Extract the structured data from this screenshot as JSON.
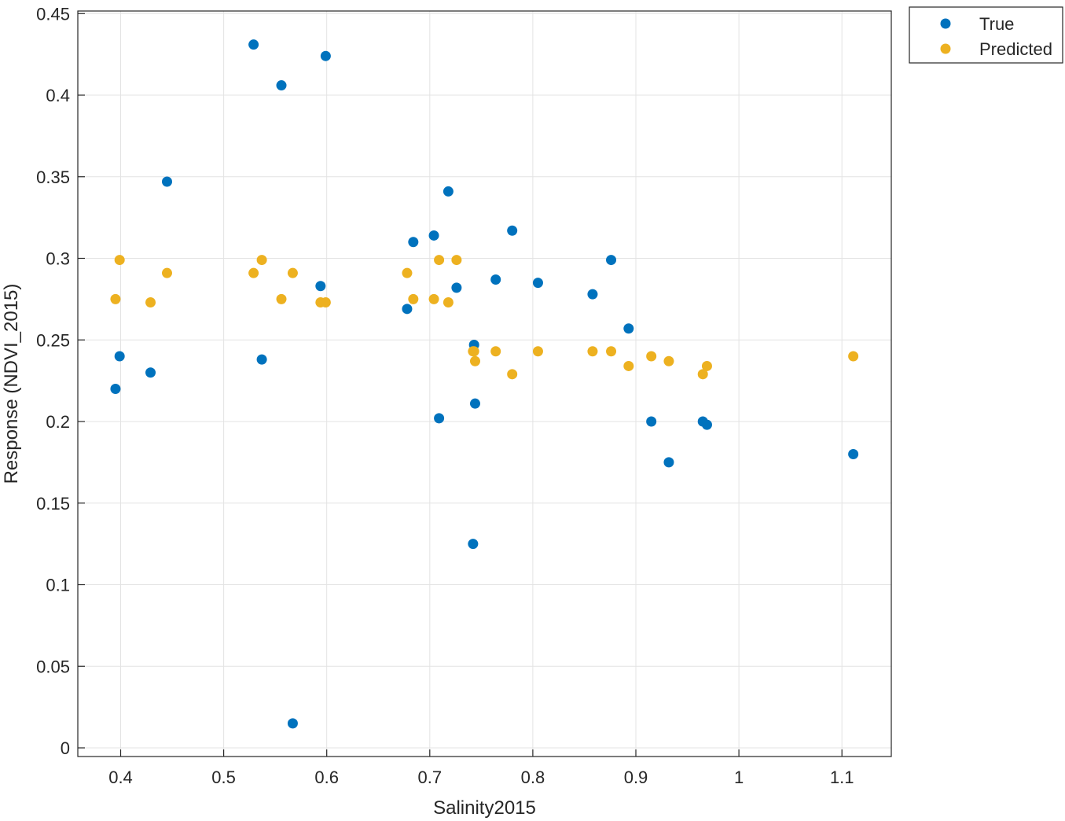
{
  "chart_data": {
    "type": "scatter",
    "title": "",
    "xlabel": "Salinity2015",
    "ylabel": "Response (NDVI_2015)",
    "xlim": [
      0.36,
      1.15
    ],
    "ylim": [
      -0.006,
      0.45
    ],
    "grid": true,
    "legend_position": "top-right, outside plot",
    "x_ticks": [
      0.4,
      0.5,
      0.6,
      0.7,
      0.8,
      0.9,
      1.0,
      1.1
    ],
    "x_tick_labels": [
      "0.4",
      "0.5",
      "0.6",
      "0.7",
      "0.8",
      "0.9",
      "1",
      "1.1"
    ],
    "y_ticks": [
      0,
      0.05,
      0.1,
      0.15,
      0.2,
      0.25,
      0.3,
      0.35,
      0.4,
      0.45
    ],
    "y_tick_labels": [
      "0",
      "0.05",
      "0.1",
      "0.15",
      "0.2",
      "0.25",
      "0.3",
      "0.35",
      "0.4",
      "0.45"
    ],
    "series": [
      {
        "name": "True",
        "color": "#0072BD",
        "points": [
          [
            0.395,
            0.22
          ],
          [
            0.399,
            0.24
          ],
          [
            0.429,
            0.23
          ],
          [
            0.445,
            0.347
          ],
          [
            0.529,
            0.431
          ],
          [
            0.537,
            0.238
          ],
          [
            0.556,
            0.406
          ],
          [
            0.567,
            0.015
          ],
          [
            0.594,
            0.283
          ],
          [
            0.599,
            0.424
          ],
          [
            0.678,
            0.269
          ],
          [
            0.684,
            0.31
          ],
          [
            0.704,
            0.314
          ],
          [
            0.709,
            0.202
          ],
          [
            0.718,
            0.341
          ],
          [
            0.726,
            0.282
          ],
          [
            0.742,
            0.125
          ],
          [
            0.743,
            0.247
          ],
          [
            0.744,
            0.211
          ],
          [
            0.764,
            0.287
          ],
          [
            0.78,
            0.317
          ],
          [
            0.805,
            0.285
          ],
          [
            0.858,
            0.278
          ],
          [
            0.876,
            0.299
          ],
          [
            0.893,
            0.257
          ],
          [
            0.915,
            0.2
          ],
          [
            0.932,
            0.175
          ],
          [
            0.965,
            0.2
          ],
          [
            0.969,
            0.198
          ],
          [
            1.111,
            0.18
          ]
        ]
      },
      {
        "name": "Predicted",
        "color": "#EDB120",
        "points": [
          [
            0.395,
            0.275
          ],
          [
            0.399,
            0.299
          ],
          [
            0.429,
            0.273
          ],
          [
            0.445,
            0.291
          ],
          [
            0.529,
            0.291
          ],
          [
            0.537,
            0.299
          ],
          [
            0.556,
            0.275
          ],
          [
            0.567,
            0.291
          ],
          [
            0.594,
            0.273
          ],
          [
            0.599,
            0.273
          ],
          [
            0.678,
            0.291
          ],
          [
            0.684,
            0.275
          ],
          [
            0.704,
            0.275
          ],
          [
            0.709,
            0.299
          ],
          [
            0.718,
            0.273
          ],
          [
            0.726,
            0.299
          ],
          [
            0.742,
            0.243
          ],
          [
            0.743,
            0.243
          ],
          [
            0.744,
            0.237
          ],
          [
            0.764,
            0.243
          ],
          [
            0.78,
            0.229
          ],
          [
            0.805,
            0.243
          ],
          [
            0.858,
            0.243
          ],
          [
            0.876,
            0.243
          ],
          [
            0.893,
            0.234
          ],
          [
            0.915,
            0.24
          ],
          [
            0.932,
            0.237
          ],
          [
            0.965,
            0.229
          ],
          [
            0.969,
            0.234
          ],
          [
            1.111,
            0.24
          ]
        ]
      }
    ]
  }
}
